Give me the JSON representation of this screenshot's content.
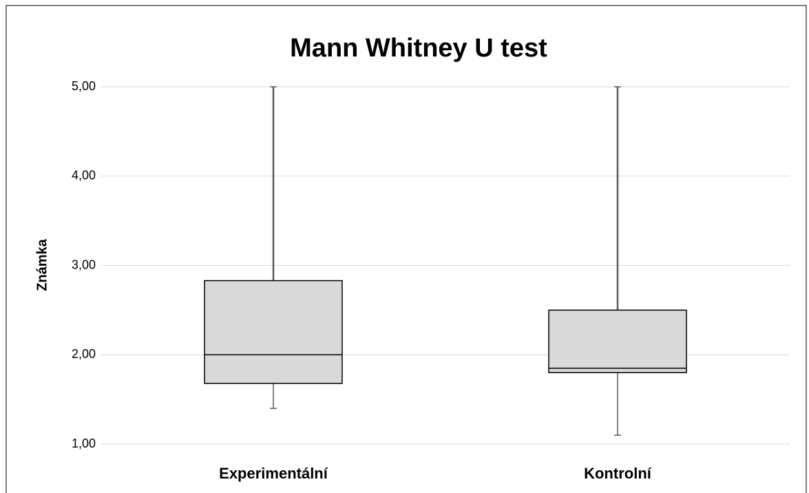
{
  "chart_data": {
    "type": "box",
    "title": "Mann Whitney U test",
    "y_label": "Známka",
    "categories": [
      "Experimentální",
      "Kontrolní"
    ],
    "min": [
      1.4,
      1.1
    ],
    "q1": [
      1.68,
      1.8
    ],
    "median": [
      2.0,
      1.85
    ],
    "q3": [
      2.83,
      2.5
    ],
    "max": [
      5.0,
      5.0
    ],
    "color": "#d9d9d9",
    "ylim": [
      1,
      5
    ],
    "yticks": [
      {
        "value": 1,
        "label": "1,00"
      },
      {
        "value": 2,
        "label": "2,00"
      },
      {
        "value": 3,
        "label": "3,00"
      },
      {
        "value": 4,
        "label": "4,00"
      },
      {
        "value": 5,
        "label": "5,00"
      }
    ],
    "grid": true
  }
}
